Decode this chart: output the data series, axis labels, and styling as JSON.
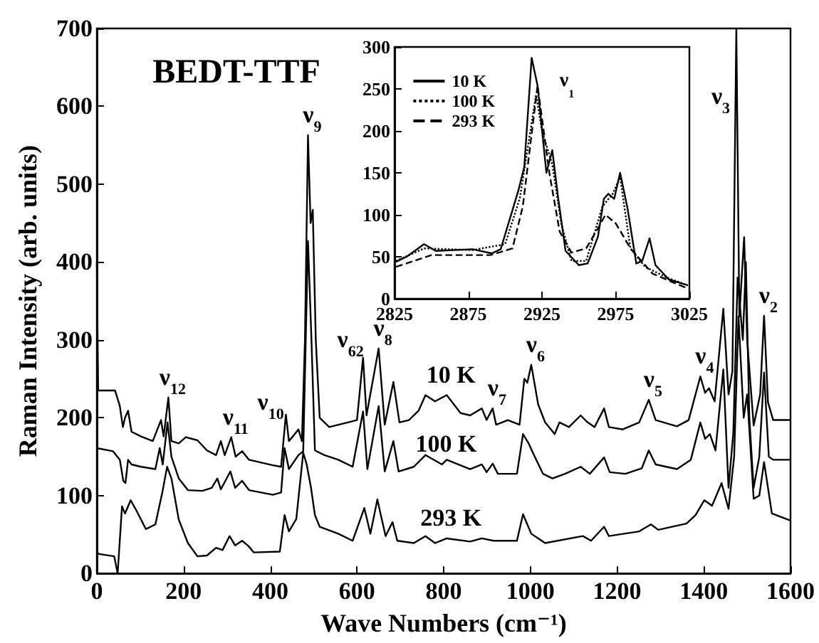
{
  "chart_data": [
    {
      "type": "line",
      "xlabel": "Wave Numbers (cm⁻¹)",
      "ylabel": "Raman Intensity (arb. units)",
      "xlim": [
        0,
        1600
      ],
      "xticks": [
        0,
        200,
        400,
        600,
        800,
        1000,
        1200,
        1400,
        1600
      ],
      "ylim": [
        0,
        700
      ],
      "yticks": [
        0,
        100,
        200,
        300,
        400,
        500,
        600,
        700
      ],
      "grid": false,
      "legend": false,
      "marker": "none",
      "line_style": "solid",
      "annotations": [
        "BEDT-TTF",
        "ν$_{3}$",
        "ν$_{62}$",
        "ν$_{10}$",
        {
          "text": "ν$_{12}$",
          "x": 165,
          "y": 226
        },
        {
          "text": "ν$_{11}$",
          "x": 310,
          "y": 175
        },
        {
          "text": "ν$_{9}$",
          "x": 487,
          "y": 563
        },
        {
          "text": "ν$_{8}$",
          "x": 650,
          "y": 289
        },
        {
          "text": "ν$_{7}$",
          "x": 913,
          "y": 212
        },
        {
          "text": "ν$_{6}$",
          "x": 1002,
          "y": 268
        },
        {
          "text": "ν$_{5}$",
          "x": 1273,
          "y": 223
        },
        {
          "text": "ν$_{4}$",
          "x": 1392,
          "y": 253
        },
        {
          "text": "ν$_{2}$",
          "x": 1539,
          "y": 331
        },
        {
          "text": "10 K",
          "x": 807,
          "y": 229
        },
        {
          "text": "100 K",
          "x": 796,
          "y": 140
        },
        {
          "text": "293 K",
          "x": 807,
          "y": 45
        }
      ],
      "series": [
        {
          "color": "#000000",
          "x": [
            0,
            3,
            42,
            53,
            60,
            65,
            72,
            80,
            102,
            129,
            148,
            154,
            165,
            172,
            189,
            205,
            232,
            254,
            275,
            286,
            295,
            310,
            320,
            335,
            351,
            406,
            425,
            436,
            443,
            455,
            465,
            473,
            480,
            487,
            493,
            498,
            505,
            514,
            536,
            579,
            600,
            614,
            622,
            650,
            664,
            684,
            698,
            720,
            742,
            758,
            780,
            807,
            839,
            861,
            888,
            899,
            913,
            921,
            948,
            975,
            986,
            993,
            1002,
            1018,
            1034,
            1056,
            1067,
            1089,
            1116,
            1130,
            1148,
            1170,
            1181,
            1213,
            1251,
            1273,
            1289,
            1338,
            1365,
            1392,
            1403,
            1412,
            1425,
            1445,
            1457,
            1466,
            1475,
            1482,
            1493,
            1500,
            1515,
            1530,
            1539,
            1548,
            1560,
            1600
          ],
          "values": [
            400,
            235,
            235,
            215,
            188,
            200,
            209,
            182,
            176,
            170,
            197,
            176,
            226,
            170,
            167,
            175,
            171,
            158,
            152,
            170,
            152,
            175,
            150,
            157,
            146,
            139,
            137,
            204,
            170,
            178,
            185,
            170,
            300,
            563,
            450,
            467,
            300,
            200,
            188,
            194,
            197,
            277,
            203,
            289,
            191,
            246,
            194,
            197,
            209,
            229,
            221,
            229,
            206,
            203,
            212,
            197,
            212,
            191,
            197,
            191,
            250,
            245,
            268,
            217,
            194,
            179,
            194,
            188,
            203,
            195,
            188,
            212,
            188,
            185,
            194,
            223,
            197,
            189,
            197,
            253,
            232,
            238,
            221,
            340,
            230,
            260,
            700,
            330,
            432,
            300,
            190,
            230,
            331,
            220,
            197,
            197
          ]
        },
        {
          "color": "#000000",
          "x": [
            0,
            37,
            53,
            61,
            66,
            72,
            80,
            102,
            135,
            145,
            152,
            163,
            172,
            189,
            210,
            243,
            265,
            278,
            286,
            308,
            319,
            335,
            351,
            406,
            425,
            433,
            443,
            465,
            476,
            487,
            495,
            503,
            525,
            557,
            590,
            614,
            624,
            650,
            664,
            684,
            696,
            731,
            758,
            796,
            807,
            861,
            888,
            899,
            913,
            925,
            969,
            983,
            996,
            1010,
            1029,
            1051,
            1080,
            1116,
            1137,
            1170,
            1183,
            1219,
            1257,
            1273,
            1289,
            1338,
            1370,
            1392,
            1403,
            1414,
            1427,
            1445,
            1457,
            1468,
            1478,
            1490,
            1497,
            1505,
            1515,
            1528,
            1539,
            1550,
            1560,
            1600
          ],
          "values": [
            161,
            157,
            146,
            119,
            116,
            146,
            140,
            137,
            134,
            161,
            140,
            194,
            150,
            122,
            107,
            106,
            110,
            122,
            108,
            131,
            110,
            119,
            107,
            101,
            104,
            161,
            134,
            152,
            157,
            427,
            300,
            158,
            152,
            146,
            137,
            208,
            134,
            215,
            131,
            170,
            131,
            137,
            152,
            140,
            146,
            134,
            140,
            130,
            141,
            128,
            128,
            179,
            167,
            150,
            128,
            122,
            128,
            137,
            128,
            149,
            130,
            128,
            135,
            158,
            140,
            134,
            146,
            194,
            173,
            179,
            158,
            262,
            110,
            180,
            380,
            300,
            400,
            200,
            110,
            150,
            258,
            150,
            146,
            146
          ]
        },
        {
          "color": "#000000",
          "x": [
            0,
            5,
            40,
            48,
            58,
            65,
            78,
            91,
            113,
            135,
            151,
            162,
            172,
            189,
            210,
            232,
            254,
            275,
            290,
            306,
            319,
            335,
            350,
            362,
            422,
            433,
            443,
            460,
            476,
            484,
            494,
            503,
            514,
            557,
            590,
            617,
            631,
            647,
            666,
            682,
            693,
            731,
            758,
            780,
            807,
            861,
            888,
            915,
            969,
            983,
            1002,
            1034,
            1121,
            1140,
            1170,
            1181,
            1251,
            1278,
            1295,
            1360,
            1381,
            1401,
            1419,
            1441,
            1457,
            1470,
            1480,
            1492,
            1500,
            1515,
            1528,
            1539,
            1557,
            1600
          ],
          "values": [
            27,
            25,
            22,
            0,
            86,
            77,
            94,
            81,
            57,
            63,
            104,
            137,
            122,
            69,
            39,
            22,
            23,
            33,
            30,
            48,
            36,
            42,
            35,
            27,
            28,
            75,
            54,
            70,
            155,
            140,
            110,
            75,
            60,
            51,
            42,
            84,
            51,
            95,
            48,
            66,
            42,
            39,
            48,
            39,
            45,
            41,
            45,
            42,
            42,
            76,
            51,
            39,
            48,
            42,
            60,
            48,
            54,
            63,
            56,
            64,
            75,
            94,
            87,
            116,
            83,
            150,
            330,
            200,
            230,
            96,
            100,
            143,
            77,
            68
          ]
        }
      ]
    },
    {
      "type": "line",
      "xlim": [
        2825,
        3025
      ],
      "xticks": [
        2825,
        2875,
        2925,
        2975,
        3025
      ],
      "ylim": [
        0,
        300
      ],
      "yticks": [
        0,
        50,
        100,
        150,
        200,
        250,
        300
      ],
      "grid": false,
      "legend": "top left",
      "marker": "none",
      "annotations": [
        "ν$_{1}$"
      ],
      "series": [
        {
          "name": "10 K",
          "color": "#000000",
          "line_style": "solid",
          "x": [
            2826,
            2834,
            2845,
            2853,
            2878,
            2891,
            2897,
            2903,
            2909,
            2913,
            2918,
            2922,
            2928,
            2932,
            2936,
            2941,
            2950,
            2956,
            2963,
            2967,
            2970,
            2974,
            2978,
            2983,
            2989,
            2993,
            2998,
            3002,
            3011,
            3024
          ],
          "values": [
            44,
            51,
            65,
            57,
            59,
            54,
            59,
            94,
            129,
            157,
            287,
            254,
            150,
            177,
            120,
            57,
            40,
            42,
            74,
            119,
            125,
            119,
            150,
            108,
            42,
            45,
            72,
            40,
            23,
            16
          ]
        },
        {
          "name": "100 K",
          "color": "#000000",
          "line_style": "dotted",
          "x": [
            2826,
            2845,
            2878,
            2900,
            2910,
            2921,
            2925,
            2932,
            2938,
            2945,
            2955,
            2966,
            2973,
            2978,
            2985,
            2995,
            3010,
            3024
          ],
          "values": [
            45,
            60,
            58,
            65,
            120,
            243,
            200,
            160,
            90,
            45,
            45,
            110,
            125,
            145,
            60,
            38,
            25,
            16
          ]
        },
        {
          "name": "293 K",
          "color": "#000000",
          "line_style": "dashed",
          "x": [
            2826,
            2850,
            2890,
            2905,
            2912,
            2922,
            2930,
            2937,
            2945,
            2955,
            2965,
            2968,
            2975,
            2985,
            3000,
            3024
          ],
          "values": [
            38,
            52,
            52,
            60,
            110,
            254,
            150,
            80,
            55,
            60,
            90,
            100,
            90,
            60,
            30,
            12
          ]
        }
      ]
    }
  ]
}
